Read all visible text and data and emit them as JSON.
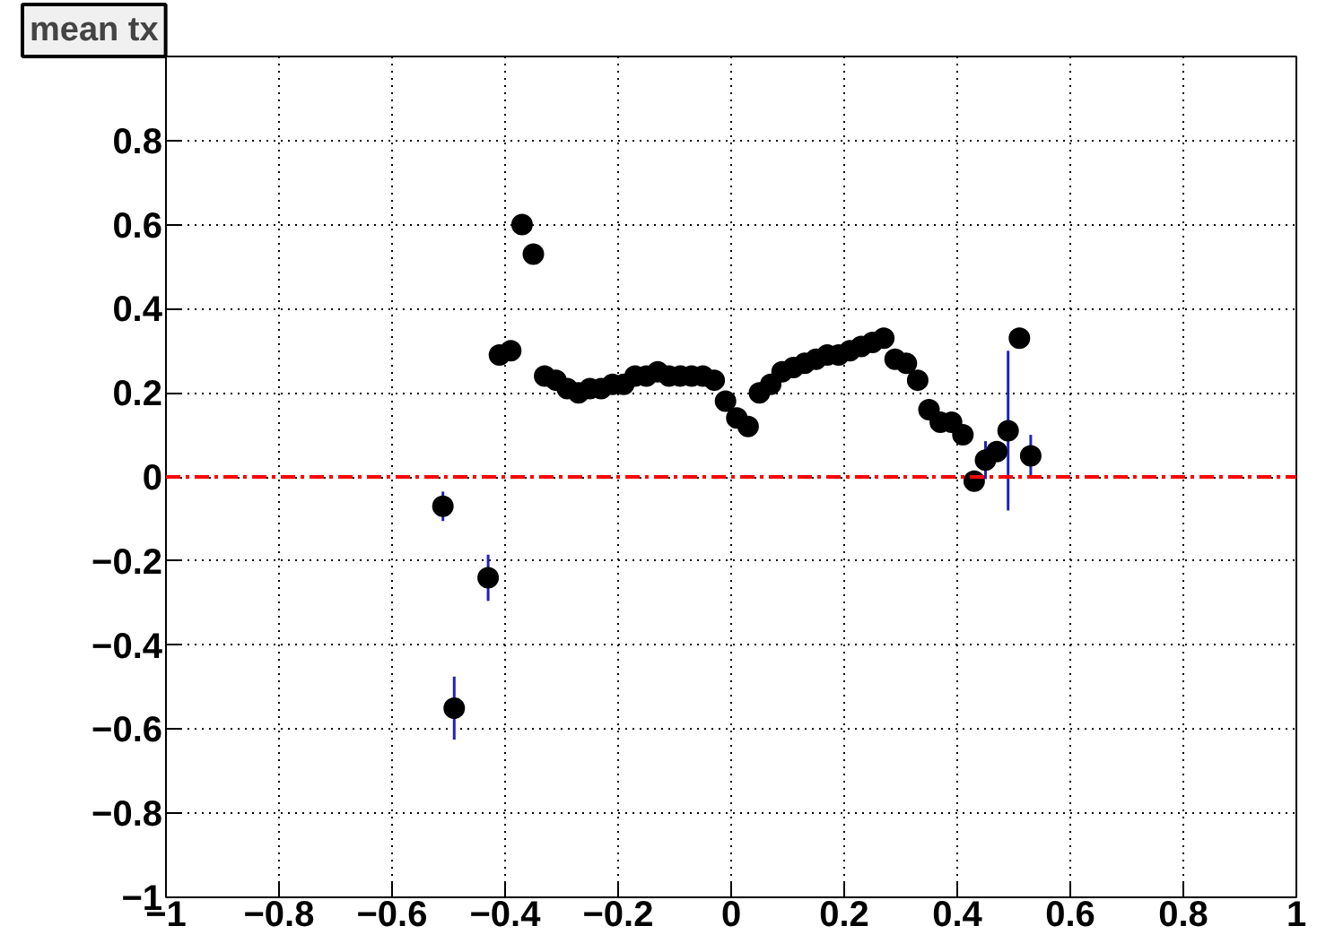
{
  "chart_data": {
    "type": "scatter",
    "title": "mean tx",
    "x": [
      -0.51,
      -0.49,
      -0.43,
      -0.41,
      -0.39,
      -0.37,
      -0.35,
      -0.33,
      -0.31,
      -0.29,
      -0.27,
      -0.25,
      -0.23,
      -0.21,
      -0.19,
      -0.17,
      -0.15,
      -0.13,
      -0.11,
      -0.09,
      -0.07,
      -0.05,
      -0.03,
      -0.01,
      0.01,
      0.03,
      0.05,
      0.07,
      0.09,
      0.11,
      0.13,
      0.15,
      0.17,
      0.19,
      0.21,
      0.23,
      0.25,
      0.27,
      0.29,
      0.31,
      0.33,
      0.35,
      0.37,
      0.39,
      0.41,
      0.43,
      0.45,
      0.47,
      0.49,
      0.51,
      0.53
    ],
    "series": [
      {
        "color": "#000000",
        "values": [
          -0.07,
          -0.55,
          -0.24,
          0.29,
          0.3,
          0.6,
          0.53,
          0.24,
          0.23,
          0.21,
          0.2,
          0.21,
          0.21,
          0.22,
          0.22,
          0.24,
          0.24,
          0.25,
          0.24,
          0.24,
          0.24,
          0.24,
          0.23,
          0.18,
          0.14,
          0.12,
          0.2,
          0.22,
          0.25,
          0.26,
          0.27,
          0.28,
          0.29,
          0.29,
          0.3,
          0.31,
          0.32,
          0.33,
          0.28,
          0.27,
          0.23,
          0.16,
          0.13,
          0.13,
          0.1,
          -0.01,
          0.04,
          0.06,
          0.11,
          0.33,
          0.05
        ],
        "errors": [
          0.035,
          0.075,
          0.055,
          null,
          null,
          null,
          null,
          null,
          null,
          null,
          null,
          null,
          null,
          null,
          null,
          null,
          null,
          null,
          null,
          null,
          null,
          null,
          null,
          null,
          null,
          null,
          null,
          null,
          null,
          null,
          null,
          null,
          null,
          null,
          null,
          null,
          null,
          null,
          null,
          null,
          null,
          null,
          null,
          null,
          null,
          null,
          0.045,
          null,
          0.19,
          null,
          0.05
        ]
      }
    ],
    "xlim": [
      -1,
      1
    ],
    "ylim": [
      -1,
      1
    ],
    "xticks": [
      {
        "value": -1,
        "label": "−1"
      },
      {
        "value": -0.8,
        "label": "−0.8"
      },
      {
        "value": -0.6,
        "label": "−0.6"
      },
      {
        "value": -0.4,
        "label": "−0.4"
      },
      {
        "value": -0.2,
        "label": "−0.2"
      },
      0,
      0.2,
      0.4,
      0.6,
      0.8,
      1
    ],
    "yticks": [
      {
        "value": -1,
        "label": "−1"
      },
      {
        "value": -0.8,
        "label": "−0.8"
      },
      {
        "value": -0.6,
        "label": "−0.6"
      },
      {
        "value": -0.4,
        "label": "−0.4"
      },
      {
        "value": -0.2,
        "label": "−0.2"
      },
      0,
      0.2,
      0.4,
      0.6,
      0.8
    ],
    "ref_lines": [
      {
        "axis": "y",
        "value": 0,
        "color": "#ff0000",
        "line_style": "dashdot"
      }
    ],
    "grid": true,
    "marker": "circle"
  }
}
